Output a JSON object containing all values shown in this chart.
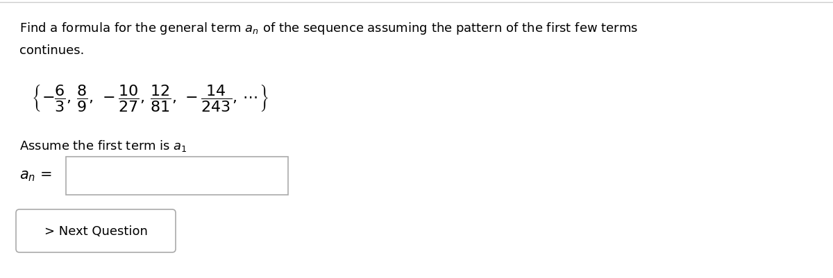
{
  "bg_color": "#ffffff",
  "title_line1": "Find a formula for the general term $a_n$ of the sequence assuming the pattern of the first few terms",
  "title_line2": "continues.",
  "sequence_text": "$\\left\\{ -\\dfrac{6}{3}, \\dfrac{8}{9}, -\\dfrac{10}{27}, \\dfrac{12}{81}, -\\dfrac{14}{243}, \\ldots \\right\\}$",
  "assume_text": "Assume the first term is $a_1$",
  "an_label": "$a_n$ =",
  "next_button_text": "> Next Question",
  "title_fontsize": 13,
  "body_fontsize": 13,
  "seq_fontsize": 15
}
